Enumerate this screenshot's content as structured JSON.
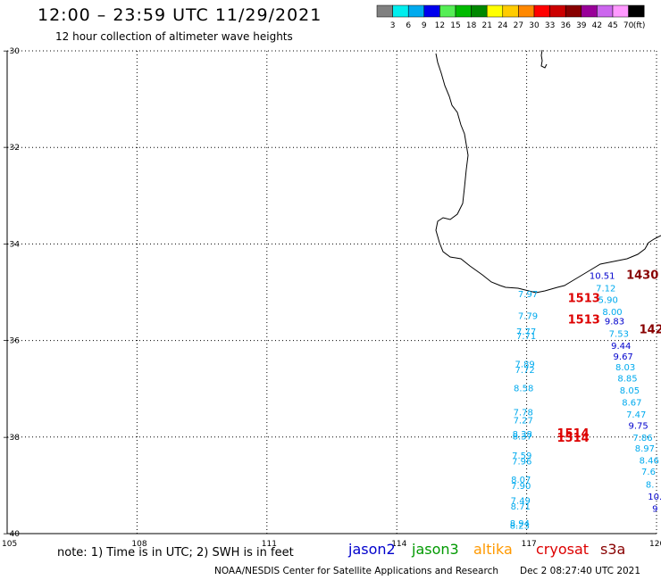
{
  "title": "12:00 – 23:59 UTC 11/29/2021",
  "subtitle": "12 hour collection of altimeter wave heights",
  "note": "note:  1) Time is in UTC;  2) SWH is in feet",
  "credit": "NOAA/NESDIS Center for Satellite Applications and Research",
  "credit_date": "Dec  2 08:27:40 UTC 2021",
  "colorbar": {
    "unit": "(ft)",
    "ticks": [
      "3",
      "6",
      "9",
      "12",
      "15",
      "18",
      "21",
      "24",
      "27",
      "30",
      "33",
      "36",
      "39",
      "42",
      "45",
      "70"
    ],
    "colors": [
      "#808080",
      "#00eeee",
      "#00aaee",
      "#0000ee",
      "#55ee55",
      "#00bb00",
      "#008800",
      "#ffff00",
      "#ffcc00",
      "#ff8800",
      "#ff0000",
      "#cc0000",
      "#880000",
      "#990099",
      "#cc66ee",
      "#ff99ff",
      "#000000"
    ]
  },
  "satellites": [
    {
      "name": "jason2",
      "color": "#0000cc"
    },
    {
      "name": "jason3",
      "color": "#009900"
    },
    {
      "name": "altika",
      "color": "#ff9900"
    },
    {
      "name": "cryosat",
      "color": "#dd0000"
    },
    {
      "name": "s3a",
      "color": "#880000"
    }
  ],
  "axes": {
    "lat_labels": [
      "-30",
      "-32",
      "-34",
      "-36",
      "-38",
      "-40"
    ],
    "lon_labels": [
      "105",
      "108",
      "111",
      "114",
      "117",
      "120"
    ]
  },
  "observations": [
    {
      "lon": 116.8,
      "lat": -35.1,
      "text": "7.97",
      "color": "#00aaee"
    },
    {
      "lon": 116.8,
      "lat": -35.55,
      "text": "7.79",
      "color": "#00aaee"
    },
    {
      "lon": 116.76,
      "lat": -35.88,
      "text": "7.77",
      "color": "#00aaee"
    },
    {
      "lon": 116.76,
      "lat": -35.97,
      "text": "7.71",
      "color": "#00aaee"
    },
    {
      "lon": 116.73,
      "lat": -36.55,
      "text": "7.89",
      "color": "#00aaee"
    },
    {
      "lon": 116.73,
      "lat": -36.67,
      "text": "7.72",
      "color": "#00aaee"
    },
    {
      "lon": 116.7,
      "lat": -37.05,
      "text": "8.58",
      "color": "#00aaee"
    },
    {
      "lon": 116.69,
      "lat": -37.55,
      "text": "7.78",
      "color": "#00aaee"
    },
    {
      "lon": 116.69,
      "lat": -37.72,
      "text": "7.27",
      "color": "#00aaee"
    },
    {
      "lon": 116.67,
      "lat": -38.0,
      "text": "8.38",
      "color": "#00aaee"
    },
    {
      "lon": 116.67,
      "lat": -38.05,
      "text": "8.37",
      "color": "#00aaee"
    },
    {
      "lon": 116.66,
      "lat": -38.45,
      "text": "7.59",
      "color": "#00aaee"
    },
    {
      "lon": 116.66,
      "lat": -38.57,
      "text": "7.96",
      "color": "#00aaee"
    },
    {
      "lon": 116.64,
      "lat": -38.95,
      "text": "8.07",
      "color": "#00aaee"
    },
    {
      "lon": 116.64,
      "lat": -39.08,
      "text": "7.90",
      "color": "#00aaee"
    },
    {
      "lon": 116.63,
      "lat": -39.38,
      "text": "7.49",
      "color": "#00aaee"
    },
    {
      "lon": 116.63,
      "lat": -39.5,
      "text": "8.71",
      "color": "#00aaee"
    },
    {
      "lon": 116.61,
      "lat": -39.85,
      "text": "8.94",
      "color": "#00aaee"
    },
    {
      "lon": 116.61,
      "lat": -39.9,
      "text": "8.23",
      "color": "#00aaee"
    },
    {
      "lon": 118.45,
      "lat": -34.72,
      "text": "10.51",
      "color": "#0000cc"
    },
    {
      "lon": 118.6,
      "lat": -34.98,
      "text": "7.12",
      "color": "#00aaee"
    },
    {
      "lon": 118.65,
      "lat": -35.22,
      "text": "5.90",
      "color": "#00aaee"
    },
    {
      "lon": 118.75,
      "lat": -35.47,
      "text": "8.00",
      "color": "#00aaee"
    },
    {
      "lon": 118.8,
      "lat": -35.67,
      "text": "9.83",
      "color": "#0000cc"
    },
    {
      "lon": 118.9,
      "lat": -35.92,
      "text": "7.53",
      "color": "#00aaee"
    },
    {
      "lon": 118.95,
      "lat": -36.17,
      "text": "9.44",
      "color": "#0000cc"
    },
    {
      "lon": 119.0,
      "lat": -36.4,
      "text": "9.67",
      "color": "#0000cc"
    },
    {
      "lon": 119.05,
      "lat": -36.62,
      "text": "8.03",
      "color": "#00aaee"
    },
    {
      "lon": 119.1,
      "lat": -36.85,
      "text": "8.85",
      "color": "#00aaee"
    },
    {
      "lon": 119.15,
      "lat": -37.1,
      "text": "8.05",
      "color": "#00aaee"
    },
    {
      "lon": 119.2,
      "lat": -37.35,
      "text": "8.67",
      "color": "#00aaee"
    },
    {
      "lon": 119.3,
      "lat": -37.6,
      "text": "7.47",
      "color": "#00aaee"
    },
    {
      "lon": 119.35,
      "lat": -37.83,
      "text": "9.75",
      "color": "#0000cc"
    },
    {
      "lon": 119.45,
      "lat": -38.08,
      "text": "7.86",
      "color": "#00aaee"
    },
    {
      "lon": 119.5,
      "lat": -38.3,
      "text": "8.97",
      "color": "#00aaee"
    },
    {
      "lon": 119.6,
      "lat": -38.55,
      "text": "8.46",
      "color": "#00aaee"
    },
    {
      "lon": 119.65,
      "lat": -38.78,
      "text": "7.6",
      "color": "#00aaee"
    },
    {
      "lon": 119.75,
      "lat": -39.05,
      "text": "8.",
      "color": "#00aaee"
    },
    {
      "lon": 119.8,
      "lat": -39.3,
      "text": "10.",
      "color": "#0000cc"
    },
    {
      "lon": 119.9,
      "lat": -39.55,
      "text": "9",
      "color": "#0000cc"
    }
  ],
  "pass_times": [
    {
      "lon": 117.95,
      "lat": -35.2,
      "text": "1513",
      "color": "#dd0000"
    },
    {
      "lon": 117.95,
      "lat": -35.65,
      "text": "1513",
      "color": "#dd0000"
    },
    {
      "lon": 117.7,
      "lat": -38.0,
      "text": "1514",
      "color": "#dd0000"
    },
    {
      "lon": 117.7,
      "lat": -38.1,
      "text": "1514",
      "color": "#dd0000"
    },
    {
      "lon": 119.3,
      "lat": -34.72,
      "text": "1430",
      "color": "#880000"
    },
    {
      "lon": 119.6,
      "lat": -35.85,
      "text": "142",
      "color": "#880000"
    }
  ]
}
